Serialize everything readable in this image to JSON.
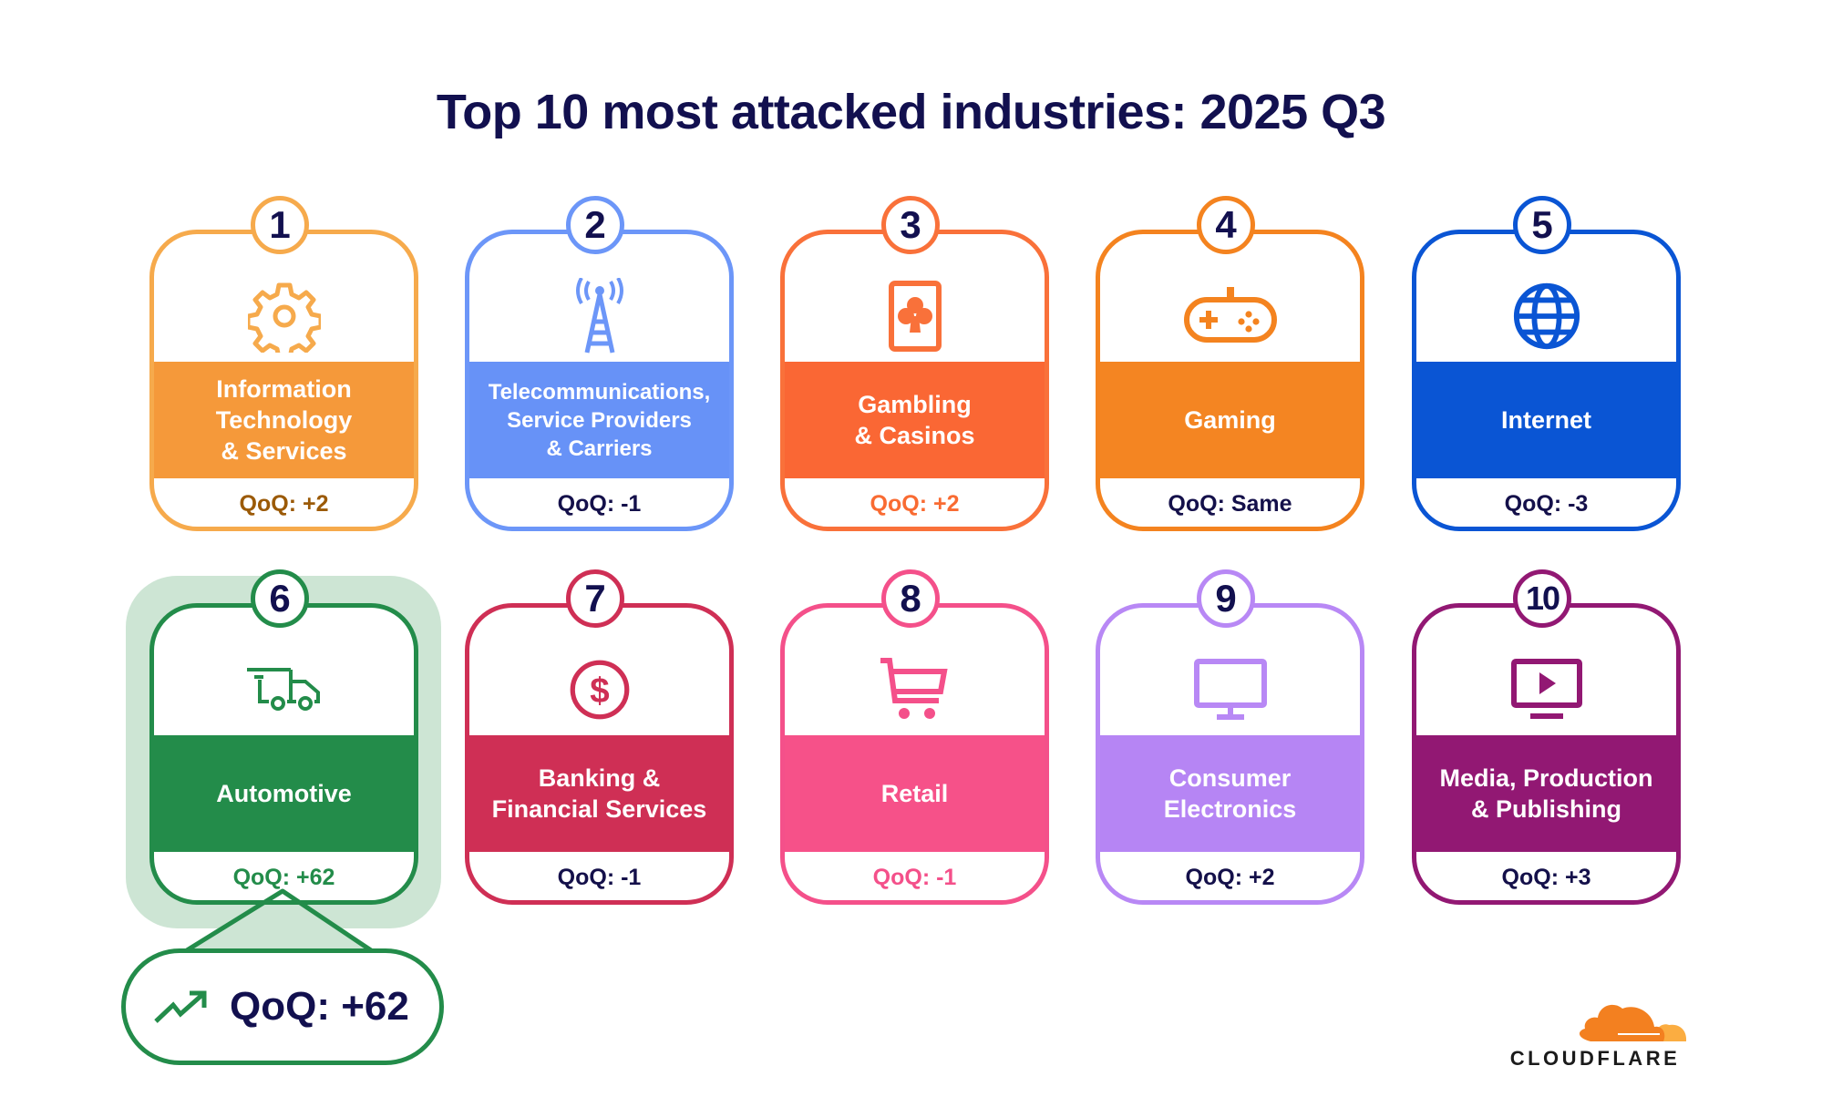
{
  "title": "Top 10 most attacked industries: 2025 Q3",
  "cards": [
    {
      "rank": "1",
      "label": "Information\nTechnology\n& Services",
      "qoq": "QoQ: +2",
      "border": "#F6AA4C",
      "band": "#F5993A",
      "qoq_color": "#9B5A07",
      "icon": "gear-icon"
    },
    {
      "rank": "2",
      "label": "Telecommunications,\nService Providers\n& Carriers",
      "qoq": "QoQ: -1",
      "border": "#6C96F8",
      "band": "#6792F7",
      "qoq_color": "#14104A",
      "icon": "cell-tower-icon"
    },
    {
      "rank": "3",
      "label": "Gambling\n& Casinos",
      "qoq": "QoQ: +2",
      "border": "#F9713A",
      "band": "#FA6734",
      "qoq_color": "#F96B32",
      "icon": "playing-card-club-icon"
    },
    {
      "rank": "4",
      "label": "Gaming",
      "qoq": "QoQ: Same",
      "border": "#F4831F",
      "band": "#F48522",
      "qoq_color": "#14104A",
      "icon": "gamepad-icon"
    },
    {
      "rank": "5",
      "label": "Internet",
      "qoq": "QoQ: -3",
      "border": "#0A55D4",
      "band": "#0A55D4",
      "qoq_color": "#14104A",
      "icon": "globe-icon"
    },
    {
      "rank": "6",
      "label": "Automotive",
      "qoq": "QoQ: +62",
      "border": "#238C4A",
      "band": "#238C4A",
      "qoq_color": "#238C4A",
      "icon": "truck-icon"
    },
    {
      "rank": "7",
      "label": "Banking &\nFinancial Services",
      "qoq": "QoQ: -1",
      "border": "#CF2F55",
      "band": "#CF2F55",
      "qoq_color": "#14104A",
      "icon": "dollar-icon"
    },
    {
      "rank": "8",
      "label": "Retail",
      "qoq": "QoQ: -1",
      "border": "#F4508A",
      "band": "#F65189",
      "qoq_color": "#F4508A",
      "icon": "shopping-cart-icon"
    },
    {
      "rank": "9",
      "label": "Consumer\nElectronics",
      "qoq": "QoQ: +2",
      "border": "#B888F5",
      "band": "#B685F4",
      "qoq_color": "#14104A",
      "icon": "monitor-icon"
    },
    {
      "rank": "10",
      "label": "Media, Production\n& Publishing",
      "qoq": "QoQ: +3",
      "border": "#921873",
      "band": "#921873",
      "qoq_color": "#14104A",
      "icon": "video-play-icon"
    }
  ],
  "callout": {
    "text": "QoQ: +62",
    "icon": "trending-up-icon",
    "color": "#238C4A",
    "highlight": "#CDE5D4"
  },
  "logo": {
    "text": "CLOUDFLARE",
    "cloud_color": "#F38020",
    "cloud_light": "#FBAD41"
  }
}
